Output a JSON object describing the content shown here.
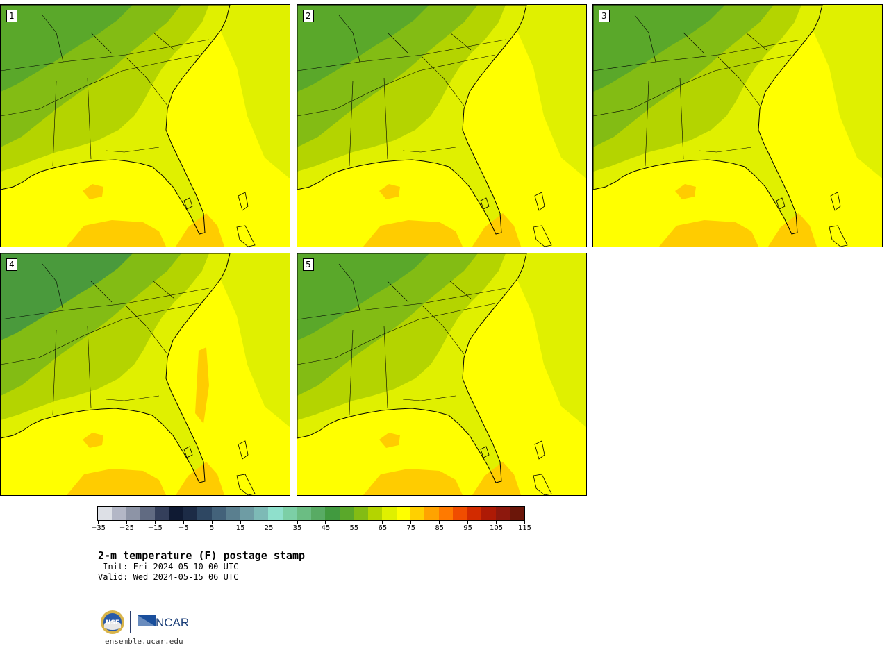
{
  "title": "2-m temperature (F) postage stamp",
  "init_text": " Init: Fri 2024-05-10 00 UTC",
  "valid_text": "Valid: Wed 2024-05-15 06 UTC",
  "site": "ensemble.ucar.edu",
  "logo_text": "NCAR",
  "nsf_text": "NSF",
  "panels": [
    {
      "label": "1"
    },
    {
      "label": "2"
    },
    {
      "label": "3"
    },
    {
      "label": "4"
    },
    {
      "label": "5"
    }
  ],
  "colorbar": {
    "colors": [
      "#dde0e6",
      "#b3b7c6",
      "#8d94a6",
      "#616b82",
      "#343f5b",
      "#0f1a33",
      "#1c2b46",
      "#2e4762",
      "#43627a",
      "#5a7f8f",
      "#6e9ca4",
      "#7dbab6",
      "#8fe0cc",
      "#7ccfa6",
      "#6bbd83",
      "#58ab64",
      "#419a3f",
      "#5aa82a",
      "#83bc14",
      "#b4d400",
      "#dff000",
      "#ffff00",
      "#ffd000",
      "#ffa300",
      "#ff7a00",
      "#f04d00",
      "#d22b00",
      "#ae1a05",
      "#8d180d",
      "#6b1609"
    ],
    "tick_labels": [
      "−35",
      "−25",
      "−15",
      "−5",
      "5",
      "15",
      "25",
      "35",
      "45",
      "55",
      "65",
      "75",
      "85",
      "95",
      "105",
      "115"
    ]
  },
  "colors": {
    "warm": "#ffcc00",
    "sea": "#ffff00",
    "land_light": "#e0f000",
    "land_mid": "#b4d400",
    "land_green": "#83bc14",
    "land_dark": "#5aa82a",
    "land_darkest": "#4a9a3c"
  }
}
